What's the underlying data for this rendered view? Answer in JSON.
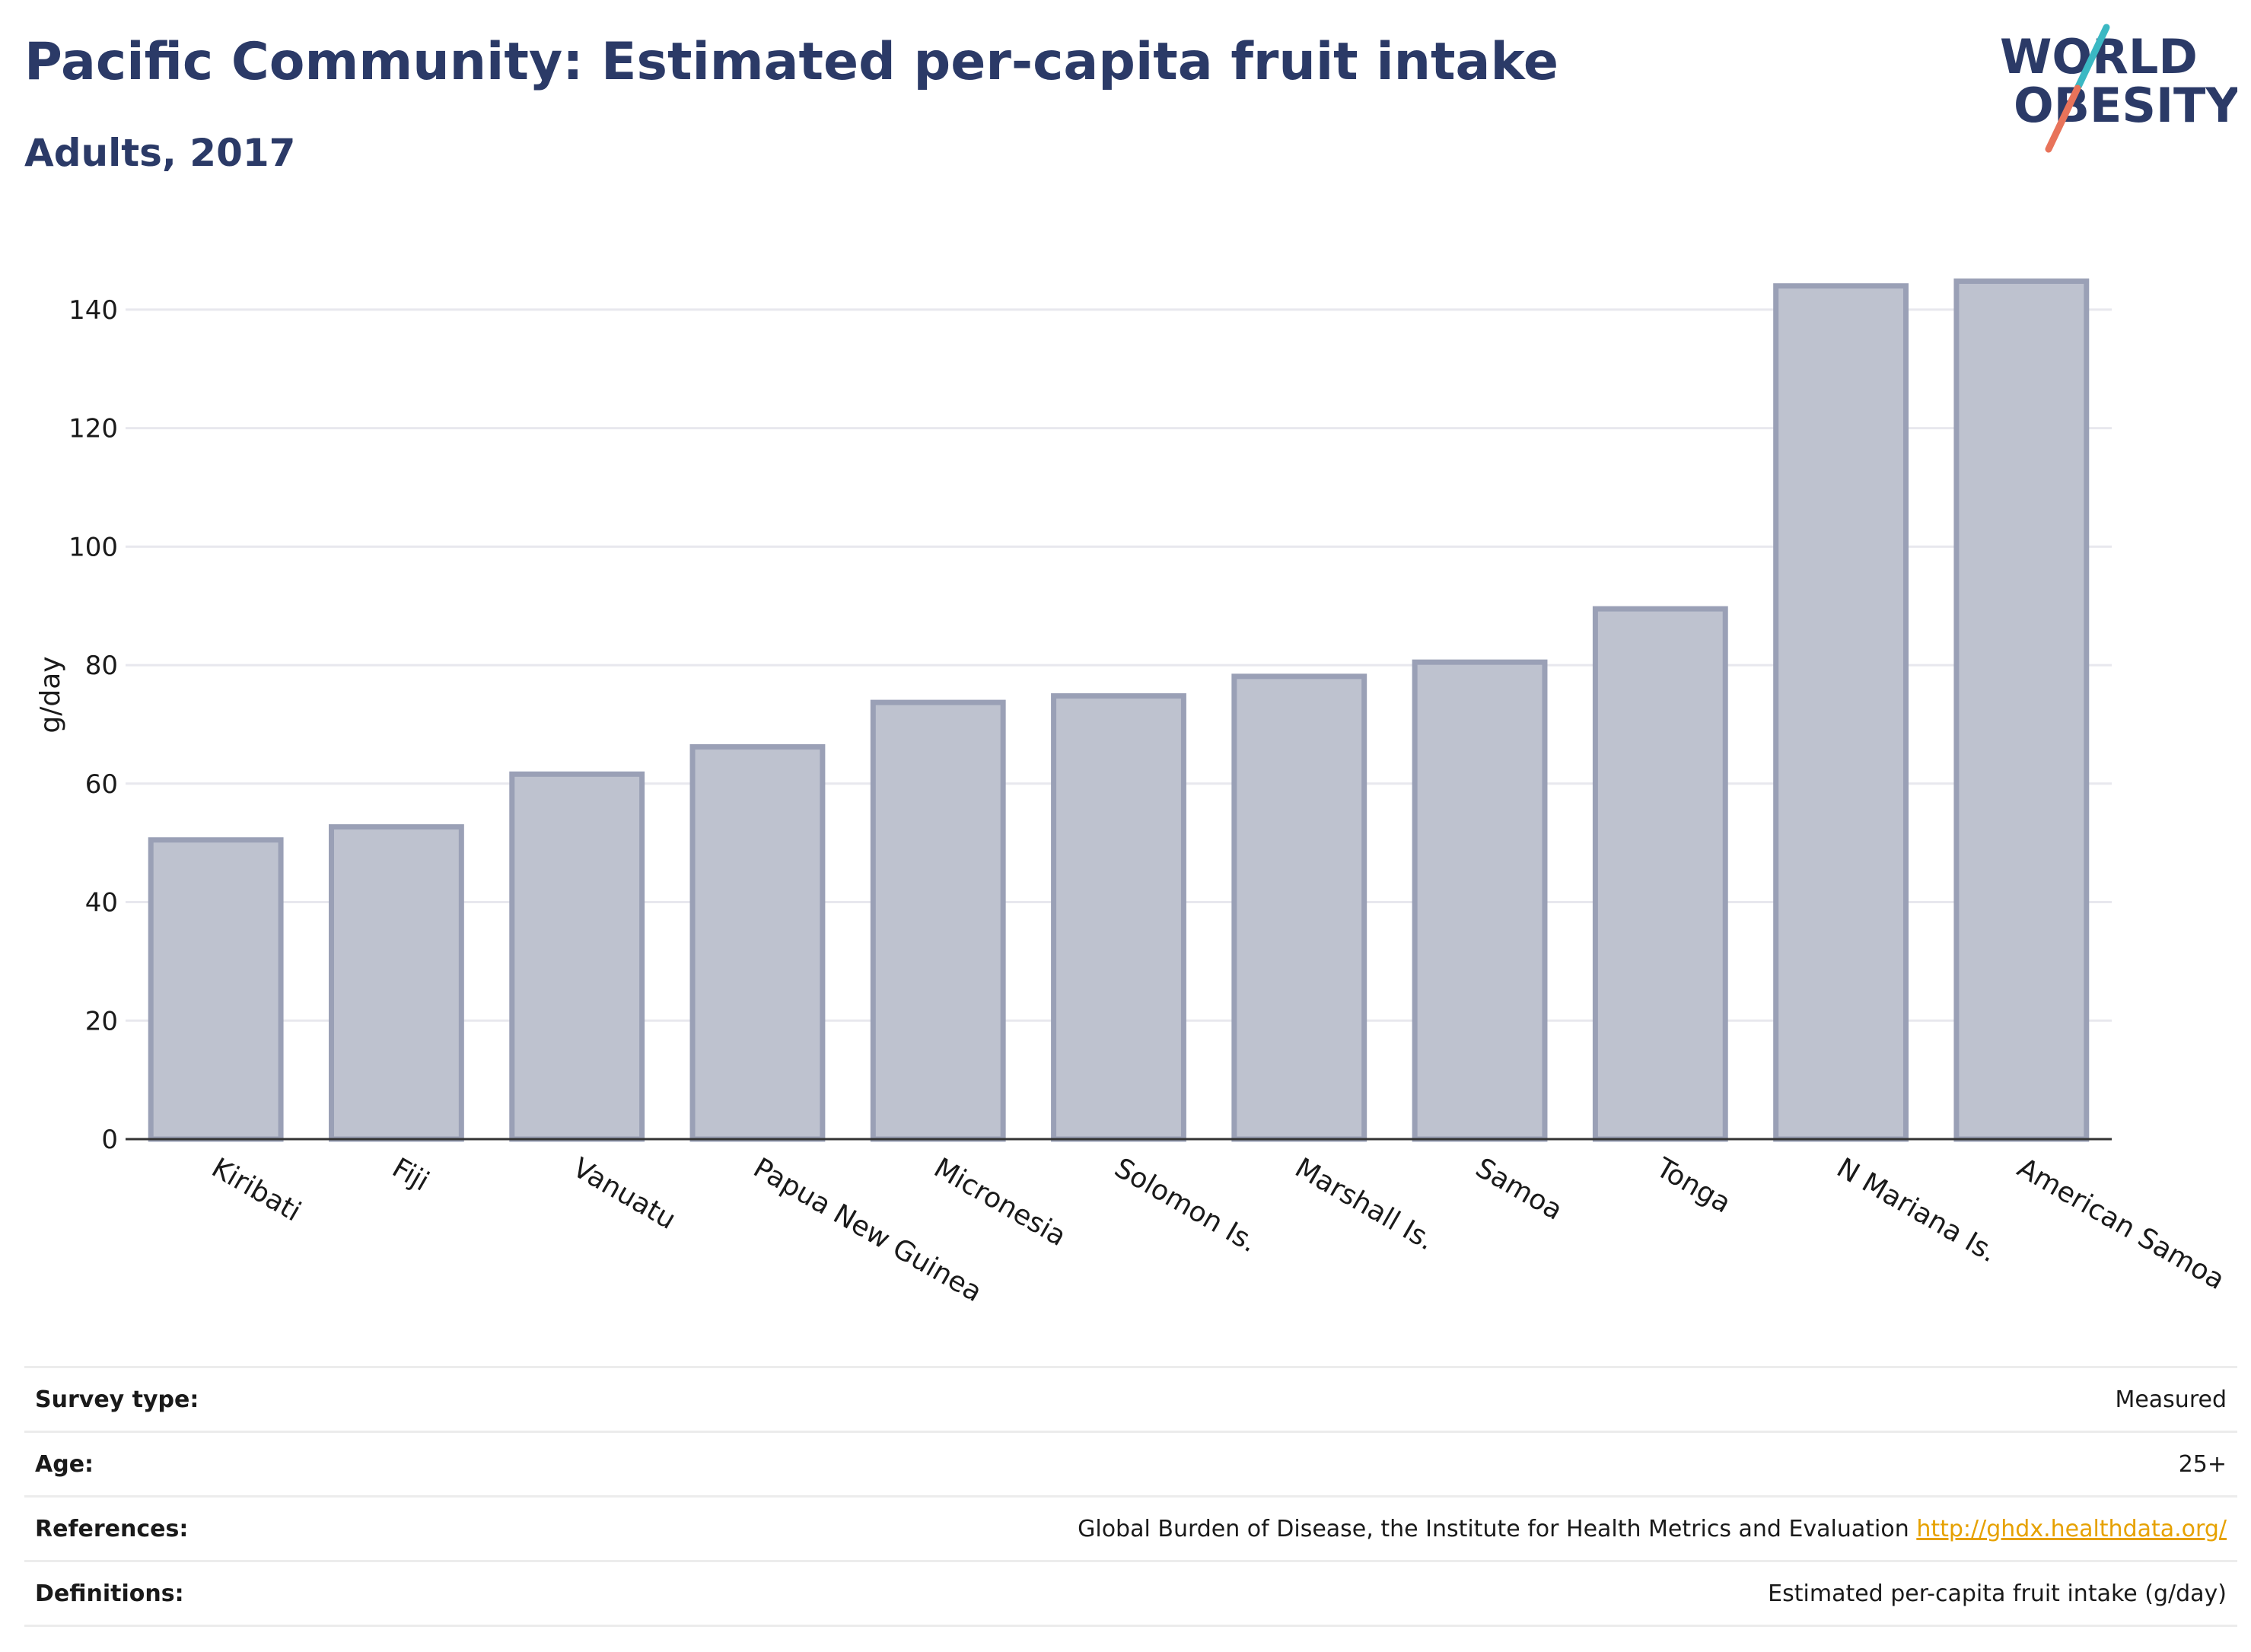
{
  "header": {
    "title": "Pacific Community: Estimated per-capita fruit intake",
    "subtitle": "Adults, 2017"
  },
  "logo": {
    "line1": "WORLD",
    "line2": "OBESITY",
    "colors": {
      "text": "#2b3a67",
      "slash_top": "#3bb8c3",
      "slash_bottom": "#e8735a"
    }
  },
  "chart_data": {
    "type": "bar",
    "ylabel": "g/day",
    "ylim": [
      0,
      150
    ],
    "yticks": [
      0,
      20,
      40,
      60,
      80,
      100,
      120,
      140
    ],
    "grid": true,
    "categories": [
      "Kiribati",
      "Fiji",
      "Vanuatu",
      "Papua New Guinea",
      "Micronesia",
      "Solomon Is.",
      "Marshall Is.",
      "Samoa",
      "Tonga",
      "N Mariana Is.",
      "American Samoa"
    ],
    "values": [
      50.5,
      52.7,
      61.6,
      66.2,
      73.7,
      74.8,
      78.1,
      80.5,
      89.5,
      144.0,
      144.8
    ],
    "bar_color": "#bec2cf",
    "bar_edge_color": "#9aa0b6"
  },
  "meta": [
    {
      "label": "Survey type:",
      "value": "Measured"
    },
    {
      "label": "Age:",
      "value": "25+"
    },
    {
      "label": "References:",
      "value": "Global Burden of Disease, the Institute for Health Metrics and Evaluation",
      "link": "http://ghdx.healthdata.org/"
    },
    {
      "label": "Definitions:",
      "value": "Estimated per-capita fruit intake (g/day)"
    }
  ]
}
